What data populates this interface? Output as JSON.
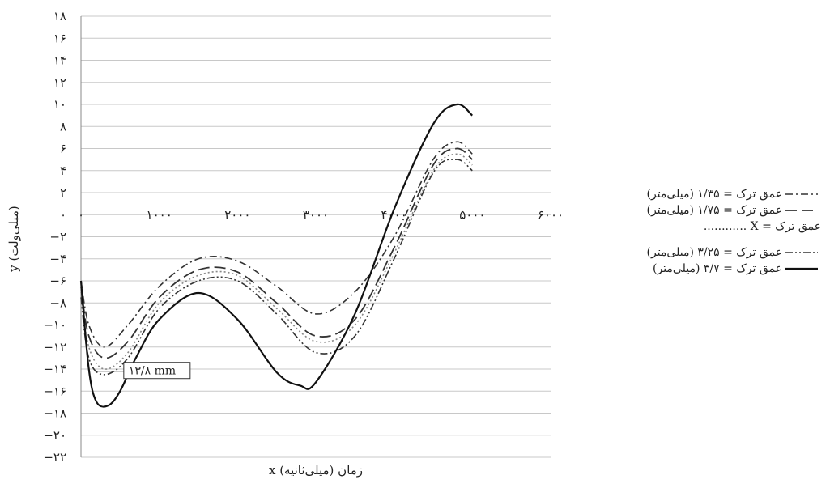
{
  "chart_data": {
    "type": "line",
    "xlabel": "x زمان (میلی‌ثانیه)",
    "ylabel": "y (میلی‌ولت)",
    "xlim": [
      0,
      6000
    ],
    "ylim": [
      -22,
      18
    ],
    "x_ticks": [
      {
        "value": 0,
        "label": "۰"
      },
      {
        "value": 1000,
        "label": "۱۰۰۰"
      },
      {
        "value": 2000,
        "label": "۲۰۰۰"
      },
      {
        "value": 3000,
        "label": "۳۰۰۰"
      },
      {
        "value": 4000,
        "label": "۴۰۰۰"
      },
      {
        "value": 5000,
        "label": "۵۰۰۰"
      },
      {
        "value": 6000,
        "label": "۶۰۰۰"
      }
    ],
    "y_ticks": [
      {
        "value": 18,
        "label": "۱۸"
      },
      {
        "value": 16,
        "label": "۱۶"
      },
      {
        "value": 14,
        "label": "۱۴"
      },
      {
        "value": 12,
        "label": "۱۲"
      },
      {
        "value": 10,
        "label": "۱۰"
      },
      {
        "value": 8,
        "label": "۸"
      },
      {
        "value": 6,
        "label": "۶"
      },
      {
        "value": 4,
        "label": "۴"
      },
      {
        "value": 2,
        "label": "۲"
      },
      {
        "value": 0,
        "label": "۰"
      },
      {
        "value": -2,
        "label": "−۲"
      },
      {
        "value": -4,
        "label": "−۴"
      },
      {
        "value": -6,
        "label": "−۶"
      },
      {
        "value": -8,
        "label": "−۸"
      },
      {
        "value": -10,
        "label": "−۱۰"
      },
      {
        "value": -12,
        "label": "−۱۲"
      },
      {
        "value": -14,
        "label": "−۱۴"
      },
      {
        "value": -16,
        "label": "−۱۶"
      },
      {
        "value": -18,
        "label": "−۱۸"
      },
      {
        "value": -20,
        "label": "−۲۰"
      },
      {
        "value": -22,
        "label": "−۲۲"
      }
    ],
    "grid": "horizontal",
    "legend_position": "right",
    "annotation": {
      "text": "۱۳/۸ mm",
      "x": 650,
      "y": -14.2
    },
    "series": [
      {
        "name": "عمق ترک = ۱/۳۵ (میلی‌متر)",
        "style": "dashdot",
        "color": "#333333",
        "x": [
          0,
          100,
          300,
          600,
          1000,
          1500,
          2000,
          2500,
          3000,
          3500,
          4000,
          4500,
          4800,
          5000
        ],
        "y": [
          -6,
          -10,
          -12,
          -10,
          -6.5,
          -4,
          -4.2,
          -6.5,
          -9,
          -7,
          -2,
          5,
          6.6,
          5.5
        ]
      },
      {
        "name": "عمق ترک = ۱/۷۵ (میلی‌متر)",
        "style": "longdash",
        "color": "#333333",
        "x": [
          0,
          100,
          300,
          600,
          1000,
          1500,
          2000,
          2500,
          3000,
          3500,
          4000,
          4500,
          4800,
          5000
        ],
        "y": [
          -6.5,
          -11,
          -13,
          -11.5,
          -7.5,
          -5,
          -5.2,
          -8,
          -11,
          -9.5,
          -3,
          4.5,
          6,
          5
        ]
      },
      {
        "name": "عمق ترک = X ............",
        "style": "dotted",
        "color": "#888888",
        "x": [
          0,
          100,
          300,
          600,
          1000,
          1500,
          2000,
          2500,
          3000,
          3500,
          4000,
          4500,
          4800,
          5000
        ],
        "y": [
          -7,
          -12,
          -14,
          -12.5,
          -8,
          -5.5,
          -5.5,
          -8.5,
          -11.5,
          -10,
          -3.5,
          4,
          5.5,
          4.5
        ]
      },
      {
        "name": "عمق ترک = ۳/۲۵ (میلی‌متر)",
        "style": "dashdotdot",
        "color": "#333333",
        "x": [
          0,
          100,
          300,
          600,
          1000,
          1500,
          2000,
          2500,
          3000,
          3500,
          4000,
          4500,
          4800,
          5000
        ],
        "y": [
          -7.5,
          -13,
          -14.5,
          -13,
          -8.5,
          -6,
          -6,
          -9,
          -12.5,
          -11,
          -4,
          3.8,
          5,
          4
        ]
      },
      {
        "name": "عمق ترک = ۳/۷ (میلی‌متر)",
        "style": "solid",
        "color": "#111111",
        "x": [
          0,
          100,
          200,
          350,
          500,
          700,
          1000,
          1500,
          2000,
          2500,
          2800,
          3000,
          3500,
          4000,
          4500,
          4800,
          5000
        ],
        "y": [
          -6,
          -14,
          -17,
          -17.3,
          -16,
          -13,
          -9.5,
          -7.1,
          -9.5,
          -14.3,
          -15.5,
          -15.2,
          -9,
          0.5,
          8.2,
          10,
          9
        ]
      }
    ]
  }
}
